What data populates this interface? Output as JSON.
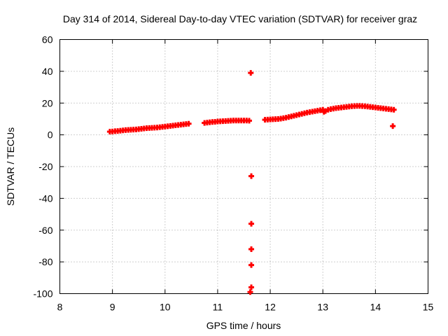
{
  "chart_data": {
    "type": "scatter",
    "title": "Day 314 of 2014, Sidereal Day-to-day VTEC variation (SDTVAR) for receiver graz",
    "xlabel": "GPS time / hours",
    "ylabel": "SDTVAR / TECUs",
    "xlim": [
      8,
      15
    ],
    "ylim": [
      -100,
      60
    ],
    "xticks": [
      8,
      9,
      10,
      11,
      12,
      13,
      14,
      15
    ],
    "yticks": [
      -100,
      -80,
      -60,
      -40,
      -20,
      0,
      20,
      40,
      60
    ],
    "grid": true,
    "marker_color": "#ff0000",
    "series": [
      {
        "name": "SDTVAR",
        "points": [
          [
            8.95,
            2.0
          ],
          [
            9.0,
            2.1
          ],
          [
            9.05,
            2.3
          ],
          [
            9.1,
            2.4
          ],
          [
            9.15,
            2.6
          ],
          [
            9.2,
            2.8
          ],
          [
            9.25,
            3.0
          ],
          [
            9.3,
            3.1
          ],
          [
            9.35,
            3.2
          ],
          [
            9.4,
            3.3
          ],
          [
            9.45,
            3.4
          ],
          [
            9.5,
            3.6
          ],
          [
            9.55,
            3.8
          ],
          [
            9.6,
            4.0
          ],
          [
            9.65,
            4.2
          ],
          [
            9.7,
            4.3
          ],
          [
            9.75,
            4.4
          ],
          [
            9.8,
            4.5
          ],
          [
            9.85,
            4.6
          ],
          [
            9.9,
            4.8
          ],
          [
            9.95,
            5.0
          ],
          [
            10.0,
            5.2
          ],
          [
            10.05,
            5.4
          ],
          [
            10.1,
            5.6
          ],
          [
            10.15,
            5.8
          ],
          [
            10.2,
            6.0
          ],
          [
            10.25,
            6.2
          ],
          [
            10.3,
            6.4
          ],
          [
            10.35,
            6.6
          ],
          [
            10.4,
            6.8
          ],
          [
            10.45,
            7.0
          ],
          [
            10.75,
            7.5
          ],
          [
            10.8,
            7.7
          ],
          [
            10.85,
            7.9
          ],
          [
            10.9,
            8.1
          ],
          [
            10.95,
            8.2
          ],
          [
            11.0,
            8.4
          ],
          [
            11.05,
            8.5
          ],
          [
            11.1,
            8.6
          ],
          [
            11.15,
            8.7
          ],
          [
            11.2,
            8.8
          ],
          [
            11.25,
            8.9
          ],
          [
            11.3,
            9.0
          ],
          [
            11.35,
            9.0
          ],
          [
            11.4,
            9.0
          ],
          [
            11.45,
            9.0
          ],
          [
            11.5,
            9.0
          ],
          [
            11.55,
            9.0
          ],
          [
            11.6,
            8.9
          ],
          [
            11.63,
            39.0
          ],
          [
            11.64,
            -26.0
          ],
          [
            11.64,
            -56.0
          ],
          [
            11.64,
            -72.0
          ],
          [
            11.64,
            -82.0
          ],
          [
            11.64,
            -96.0
          ],
          [
            11.62,
            -99.0
          ],
          [
            11.9,
            9.5
          ],
          [
            11.95,
            9.6
          ],
          [
            12.0,
            9.7
          ],
          [
            12.05,
            9.8
          ],
          [
            12.1,
            9.9
          ],
          [
            12.15,
            10.0
          ],
          [
            12.2,
            10.2
          ],
          [
            12.25,
            10.5
          ],
          [
            12.3,
            10.8
          ],
          [
            12.35,
            11.2
          ],
          [
            12.4,
            11.6
          ],
          [
            12.45,
            12.0
          ],
          [
            12.5,
            12.4
          ],
          [
            12.55,
            12.8
          ],
          [
            12.6,
            13.2
          ],
          [
            12.65,
            13.6
          ],
          [
            12.7,
            14.0
          ],
          [
            12.75,
            14.3
          ],
          [
            12.8,
            14.6
          ],
          [
            12.85,
            14.9
          ],
          [
            12.9,
            15.2
          ],
          [
            12.95,
            15.5
          ],
          [
            13.0,
            15.8
          ],
          [
            13.02,
            14.5
          ],
          [
            13.05,
            15.0
          ],
          [
            13.1,
            15.8
          ],
          [
            13.15,
            16.2
          ],
          [
            13.2,
            16.5
          ],
          [
            13.25,
            16.8
          ],
          [
            13.3,
            17.0
          ],
          [
            13.35,
            17.2
          ],
          [
            13.4,
            17.4
          ],
          [
            13.45,
            17.6
          ],
          [
            13.5,
            17.8
          ],
          [
            13.55,
            18.0
          ],
          [
            13.6,
            18.1
          ],
          [
            13.65,
            18.2
          ],
          [
            13.7,
            18.2
          ],
          [
            13.75,
            18.1
          ],
          [
            13.8,
            18.0
          ],
          [
            13.85,
            17.8
          ],
          [
            13.9,
            17.6
          ],
          [
            13.95,
            17.4
          ],
          [
            14.0,
            17.2
          ],
          [
            14.05,
            17.0
          ],
          [
            14.1,
            16.8
          ],
          [
            14.15,
            16.6
          ],
          [
            14.2,
            16.4
          ],
          [
            14.25,
            16.2
          ],
          [
            14.3,
            16.0
          ],
          [
            14.35,
            15.8
          ],
          [
            14.33,
            5.5
          ]
        ]
      }
    ]
  }
}
